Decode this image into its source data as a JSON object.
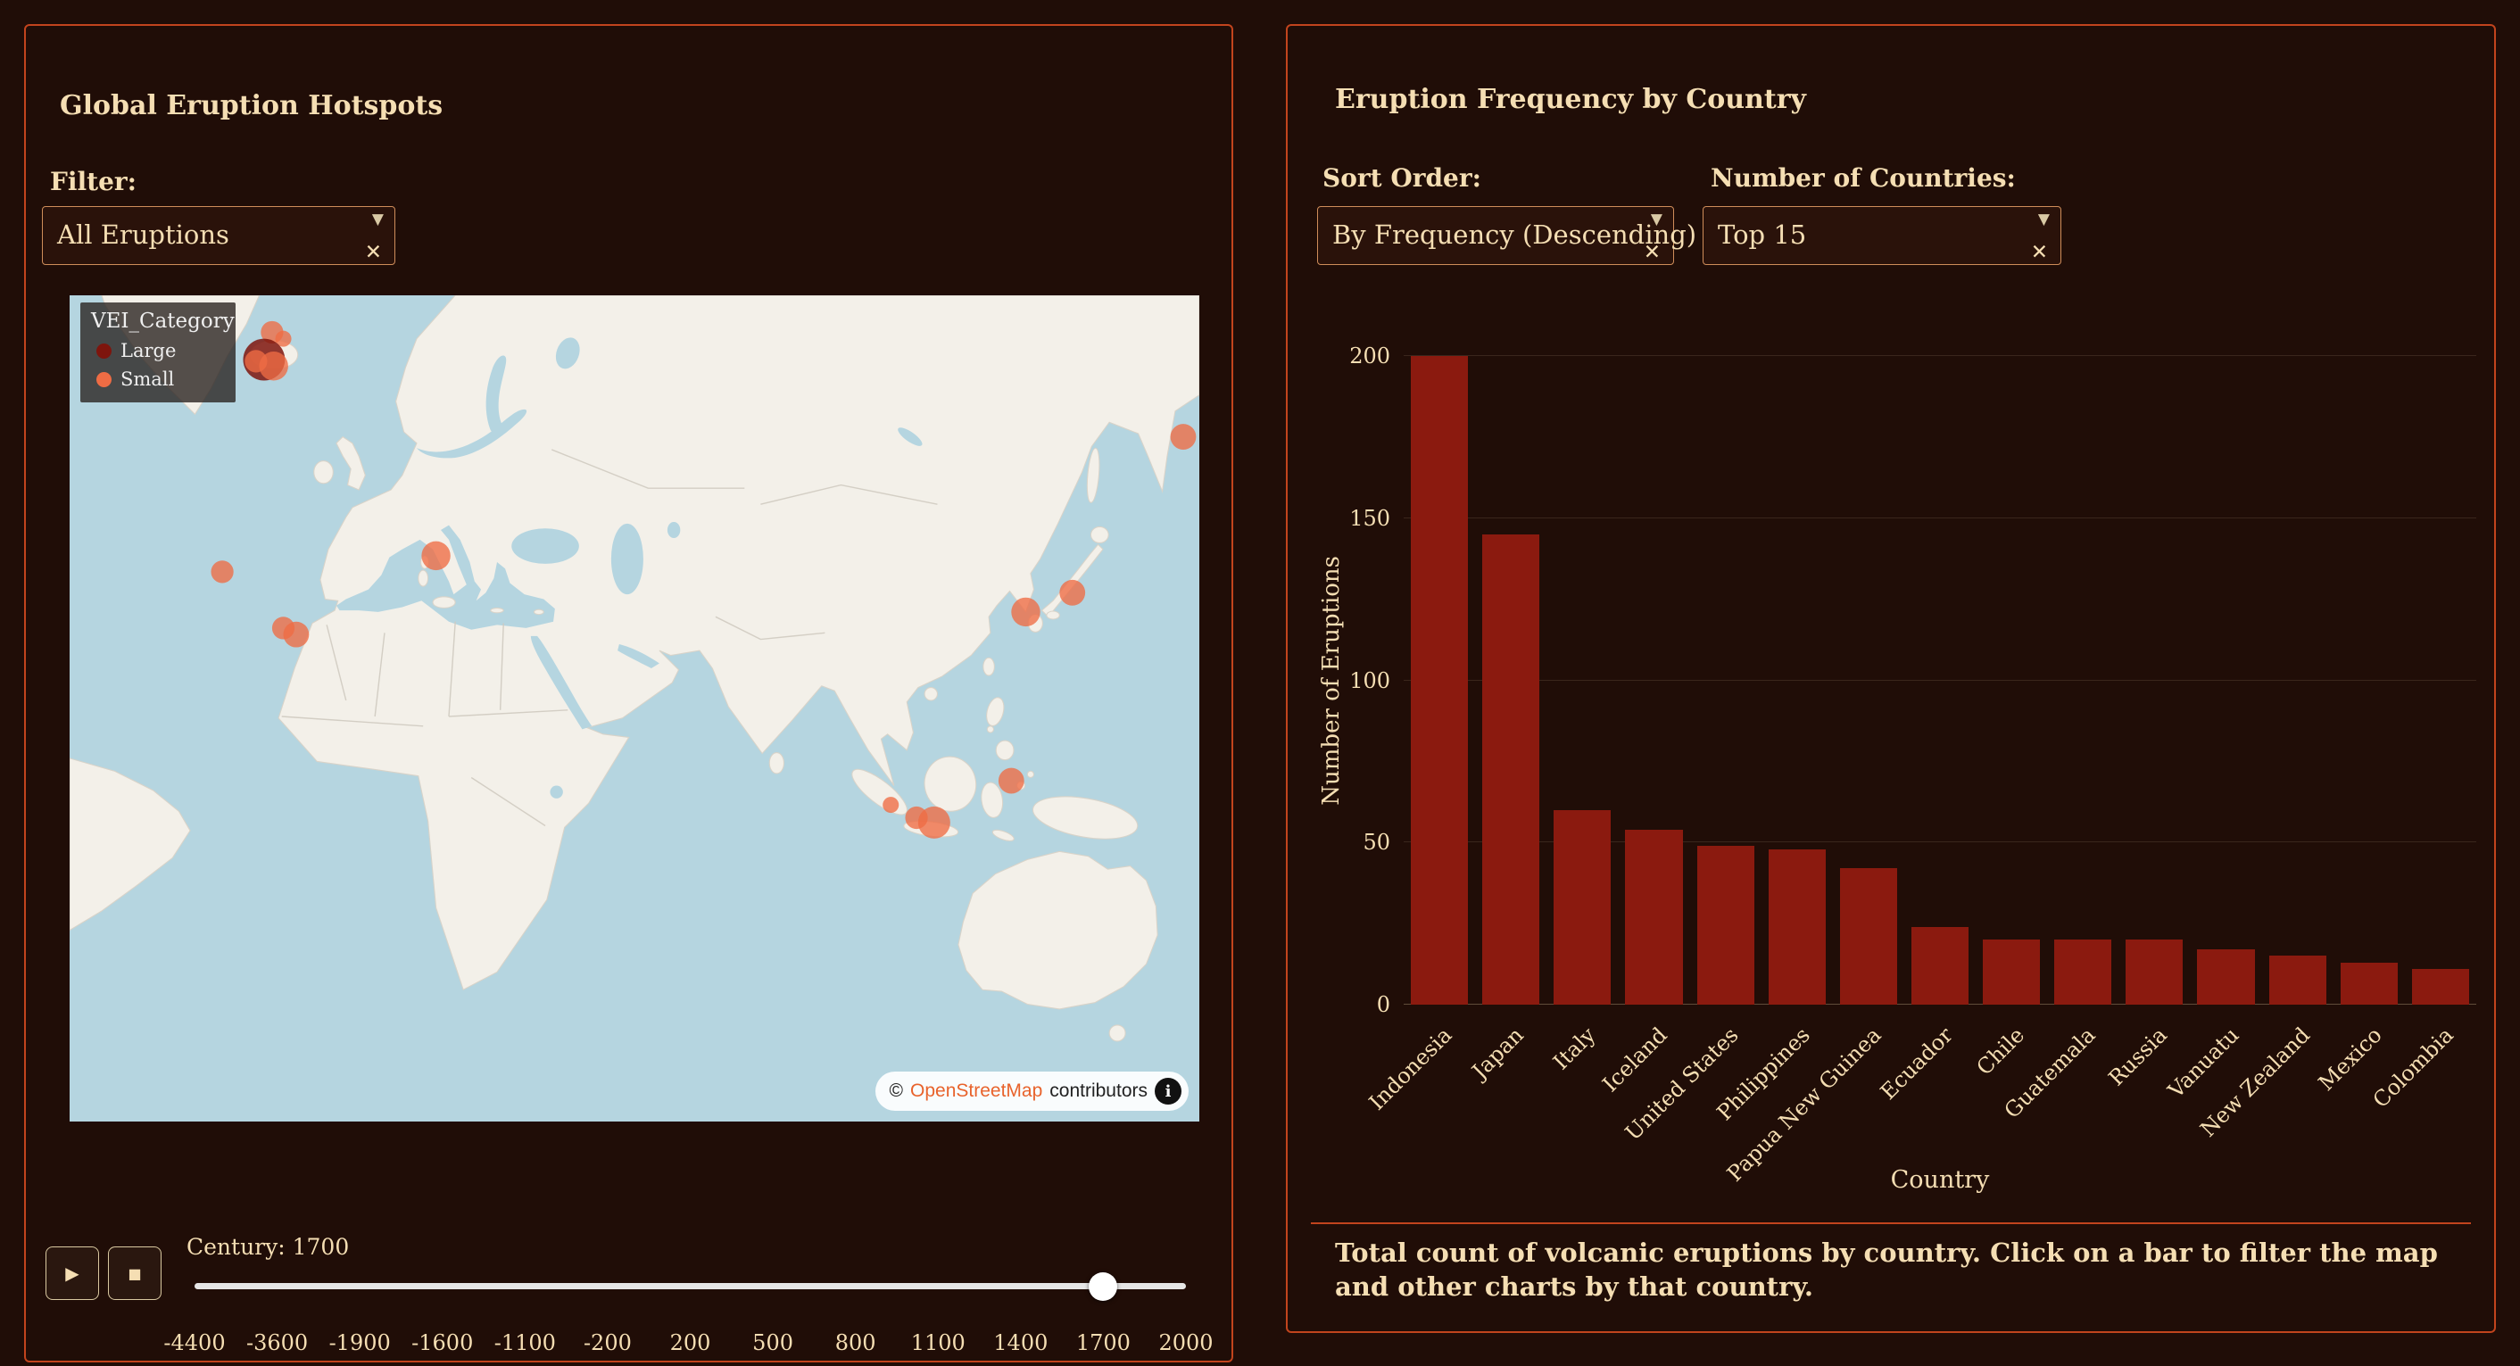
{
  "theme": {
    "background": "#200d07",
    "panel_border": "#c2441d",
    "text_color": "#f5deb3",
    "bar_color": "#8b1a0f",
    "marker_small_color": "#ee6c44",
    "marker_large_color": "#7e150d",
    "link_color": "#e8632c"
  },
  "left_panel": {
    "title": "Global Eruption Hotspots",
    "filter": {
      "label": "Filter:",
      "value": "All Eruptions",
      "caret": "▼",
      "clear": "✕"
    },
    "map": {
      "legend": {
        "title": "VEI_Category",
        "items": [
          {
            "label": "Large",
            "color": "#7e150d"
          },
          {
            "label": "Small",
            "color": "#ee6c44"
          }
        ]
      },
      "attribution": {
        "copyright": "©",
        "link": "OpenStreetMap",
        "suffix": "contributors",
        "info": "i"
      },
      "markers": [
        {
          "x": 126,
          "y": 23,
          "r": 7,
          "category": "Small"
        },
        {
          "x": 133,
          "y": 27,
          "r": 5,
          "category": "Small"
        },
        {
          "x": 121,
          "y": 40,
          "r": 13,
          "category": "Large"
        },
        {
          "x": 127,
          "y": 44,
          "r": 9,
          "category": "Small"
        },
        {
          "x": 116,
          "y": 41,
          "r": 7,
          "category": "Small"
        },
        {
          "x": 693,
          "y": 88,
          "r": 8,
          "category": "Small"
        },
        {
          "x": 95,
          "y": 172,
          "r": 7,
          "category": "Small"
        },
        {
          "x": 228,
          "y": 162,
          "r": 9,
          "category": "Small"
        },
        {
          "x": 133,
          "y": 207,
          "r": 7,
          "category": "Small"
        },
        {
          "x": 141,
          "y": 211,
          "r": 8,
          "category": "Small"
        },
        {
          "x": 595,
          "y": 197,
          "r": 9,
          "category": "Small"
        },
        {
          "x": 624,
          "y": 185,
          "r": 8,
          "category": "Small"
        },
        {
          "x": 586,
          "y": 302,
          "r": 8,
          "category": "Small"
        },
        {
          "x": 538,
          "y": 328,
          "r": 10,
          "category": "Small"
        },
        {
          "x": 527,
          "y": 325,
          "r": 7,
          "category": "Small"
        },
        {
          "x": 511,
          "y": 317,
          "r": 5,
          "category": "Small"
        }
      ]
    },
    "timeline": {
      "play": "▶",
      "stop": "■",
      "label": "Century: 1700",
      "value_index": 11,
      "ticks": [
        "-4400",
        "-3600",
        "-1900",
        "-1600",
        "-1100",
        "-200",
        "200",
        "500",
        "800",
        "1100",
        "1400",
        "1700",
        "2000"
      ]
    }
  },
  "right_panel": {
    "title": "Eruption Frequency by Country",
    "sort": {
      "label": "Sort Order:",
      "value": "By Frequency (Descending)",
      "caret": "▼",
      "clear": "✕"
    },
    "count": {
      "label": "Number of Countries:",
      "value": "Top 15",
      "caret": "▼",
      "clear": "✕"
    },
    "caption": "Total count of volcanic eruptions by country. Click on a bar to filter the map and other charts by that country."
  },
  "chart_data": {
    "type": "bar",
    "title": "Eruption Frequency by Country",
    "categories": [
      "Indonesia",
      "Japan",
      "Italy",
      "Iceland",
      "United States",
      "Philippines",
      "Papua New Guinea",
      "Ecuador",
      "Chile",
      "Guatemala",
      "Russia",
      "Vanuatu",
      "New Zealand",
      "Mexico",
      "Colombia"
    ],
    "values": [
      200,
      145,
      60,
      54,
      49,
      48,
      42,
      24,
      20,
      20,
      20,
      17,
      15,
      13,
      11
    ],
    "xlabel": "Country",
    "ylabel": "Number of Eruptions",
    "ylim": [
      0,
      200
    ],
    "yticks": [
      0,
      50,
      100,
      150,
      200
    ],
    "bar_color": "#8b1a0f",
    "grid": true,
    "legend_position": "none"
  }
}
